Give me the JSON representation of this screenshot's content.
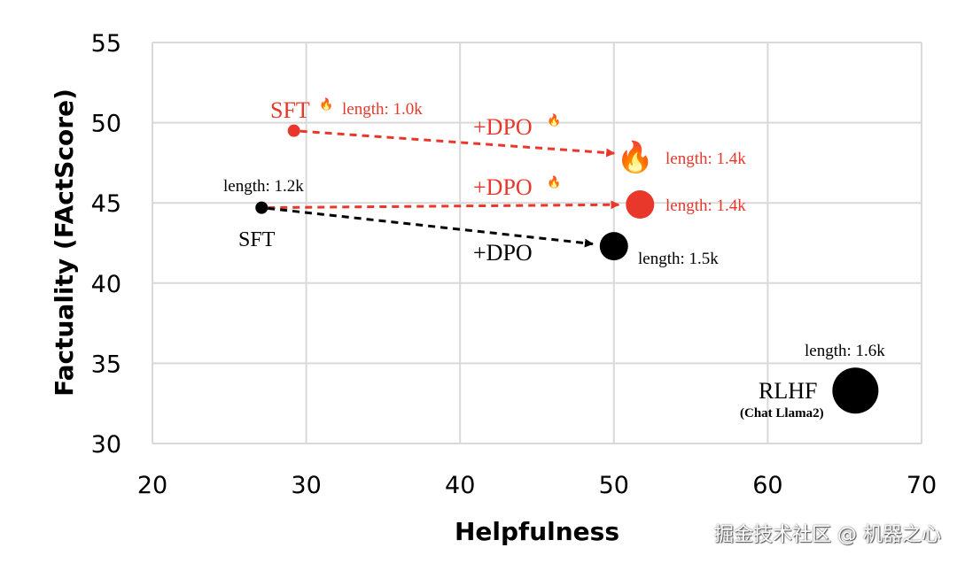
{
  "chart_data": {
    "type": "scatter",
    "xlabel": "Helpfulness",
    "ylabel": "Factuality (FActScore)",
    "xlim": [
      20,
      70
    ],
    "ylim": [
      30,
      55
    ],
    "xticks": [
      "20",
      "30",
      "40",
      "50",
      "60",
      "70"
    ],
    "yticks": [
      "30",
      "35",
      "40",
      "45",
      "50",
      "55"
    ],
    "grid": true,
    "colors": {
      "red": "#e8382b",
      "black": "#000000",
      "grid": "#d9d9d9"
    },
    "points": [
      {
        "id": "sft-fire",
        "label": "SFT",
        "label_icon": "fire-icon",
        "length": "length: 1.0k",
        "x": 29.2,
        "y": 49.5,
        "color": "#e8382b",
        "marker": "dot"
      },
      {
        "id": "dpo-fire-from-fire",
        "label": "+DPO",
        "label_icon": "fire-icon",
        "length": "length: 1.4k",
        "x": 51.4,
        "y": 48.0,
        "color": "#e8382b",
        "marker": "fire-icon"
      },
      {
        "id": "sft",
        "label": "SFT",
        "length": "length: 1.2k",
        "x": 27.1,
        "y": 44.7,
        "color": "#000000",
        "marker": "dot"
      },
      {
        "id": "dpo-fire-from-sft",
        "label": "+DPO",
        "label_icon": "fire-icon",
        "length": "length: 1.4k",
        "x": 51.7,
        "y": 44.9,
        "color": "#e8382b",
        "marker": "dot"
      },
      {
        "id": "dpo",
        "label": "+DPO",
        "length": "length: 1.5k",
        "x": 50.0,
        "y": 42.3,
        "color": "#000000",
        "marker": "dot"
      },
      {
        "id": "rlhf",
        "label": "RLHF",
        "sublabel": "(Chat Llama2)",
        "length": "length: 1.6k",
        "x": 65.7,
        "y": 33.3,
        "color": "#000000",
        "marker": "dot"
      }
    ],
    "arrows": [
      {
        "from": "sft-fire",
        "to": "dpo-fire-from-fire",
        "color": "#e8382b",
        "style": "dashed"
      },
      {
        "from": "sft",
        "to": "dpo-fire-from-sft",
        "color": "#e8382b",
        "style": "dashed"
      },
      {
        "from": "sft",
        "to": "dpo",
        "color": "#000000",
        "style": "dashed"
      }
    ]
  },
  "watermark": "掘金技术社区 @ 机器之心"
}
